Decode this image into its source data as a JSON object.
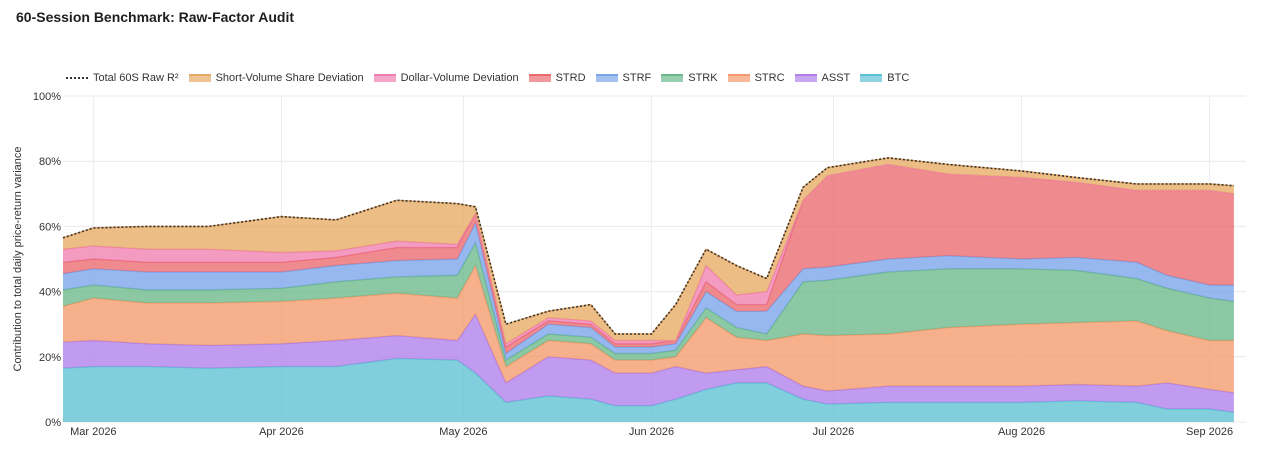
{
  "page": {
    "title": "60-Session Benchmark: Raw-Factor Audit"
  },
  "chart_data": {
    "type": "area",
    "stacked": true,
    "title": "60-Session Benchmark: Raw-Factor Audit",
    "ylabel": "Contribution to total daily price-return variance",
    "xlabel": "",
    "ylim": [
      0,
      100
    ],
    "xlim": [
      "2026-02-24",
      "2026-09-07"
    ],
    "grid": true,
    "legend_position": "top",
    "y_ticks": [
      {
        "value": 0,
        "label": "0%"
      },
      {
        "value": 20,
        "label": "20%"
      },
      {
        "value": 40,
        "label": "40%"
      },
      {
        "value": 60,
        "label": "60%"
      },
      {
        "value": 80,
        "label": "80%"
      },
      {
        "value": 100,
        "label": "100%"
      }
    ],
    "x_ticks": [
      {
        "date": "2026-03-01",
        "label": "Mar 2026"
      },
      {
        "date": "2026-04-01",
        "label": "Apr 2026"
      },
      {
        "date": "2026-05-01",
        "label": "May 2026"
      },
      {
        "date": "2026-06-01",
        "label": "Jun 2026"
      },
      {
        "date": "2026-07-01",
        "label": "Jul 2026"
      },
      {
        "date": "2026-08-01",
        "label": "Aug 2026"
      },
      {
        "date": "2026-09-01",
        "label": "Sep 2026"
      }
    ],
    "x": [
      "2026-02-24",
      "2026-03-01",
      "2026-03-10",
      "2026-03-20",
      "2026-04-01",
      "2026-04-10",
      "2026-04-20",
      "2026-04-30",
      "2026-05-03",
      "2026-05-08",
      "2026-05-15",
      "2026-05-22",
      "2026-05-26",
      "2026-06-01",
      "2026-06-05",
      "2026-06-10",
      "2026-06-15",
      "2026-06-20",
      "2026-06-26",
      "2026-06-30",
      "2026-07-10",
      "2026-07-20",
      "2026-08-01",
      "2026-08-10",
      "2026-08-20",
      "2026-08-25",
      "2026-09-01",
      "2026-09-05"
    ],
    "total": {
      "name": "Total 60S Raw R²",
      "color": "#333333",
      "values": [
        56.5,
        59.5,
        60,
        60,
        63,
        62,
        68,
        67,
        66,
        30,
        34,
        36,
        27,
        27,
        36,
        53,
        48,
        44,
        72,
        78,
        81,
        79,
        77,
        75,
        73,
        73,
        73,
        72.5
      ]
    },
    "series": [
      {
        "name": "BTC",
        "color": "#5ec0d4",
        "values": [
          16.5,
          17,
          17,
          16.5,
          17,
          17,
          19.5,
          19,
          15,
          6,
          8,
          7,
          5,
          5,
          7,
          10,
          12,
          12,
          7,
          5.5,
          6,
          6,
          6,
          6.5,
          6,
          4,
          4,
          3
        ]
      },
      {
        "name": "ASST",
        "color": "#b07fea",
        "values": [
          8,
          8,
          7,
          7,
          7,
          8,
          7,
          6,
          18,
          6,
          12,
          12,
          10,
          10,
          10,
          5,
          4,
          5,
          4,
          4,
          5,
          5,
          5,
          5,
          5,
          8,
          6,
          6
        ]
      },
      {
        "name": "STRC",
        "color": "#f49a6c",
        "values": [
          11,
          13,
          12.5,
          13,
          13,
          13,
          13,
          13,
          15,
          5,
          5,
          5,
          4,
          4,
          3,
          17,
          10,
          8,
          16,
          17,
          16,
          18,
          19,
          19,
          20,
          16,
          15,
          16
        ]
      },
      {
        "name": "STRK",
        "color": "#6ab989",
        "values": [
          5,
          4,
          4,
          4,
          4,
          5,
          5,
          7,
          7,
          2,
          2,
          2,
          2,
          2,
          2,
          3,
          3,
          2,
          16,
          17,
          19,
          18,
          17,
          16,
          13,
          13,
          13,
          12
        ]
      },
      {
        "name": "STRF",
        "color": "#7aa3ea",
        "values": [
          5,
          5,
          5.5,
          5.5,
          5,
          5,
          5,
          5,
          6,
          2,
          3,
          3,
          2,
          2,
          2,
          5,
          5,
          7,
          4,
          4,
          4,
          4,
          3,
          4,
          5,
          4,
          4,
          5
        ]
      },
      {
        "name": "STRD",
        "color": "#ea6a70",
        "values": [
          3.5,
          3,
          3,
          3,
          3,
          2.5,
          4,
          3.5,
          3,
          2,
          1,
          1,
          1,
          1,
          1,
          3,
          2,
          2,
          21,
          28,
          29,
          25,
          25,
          23,
          22,
          26,
          29,
          28
        ]
      },
      {
        "name": "Dollar-Volume Deviation",
        "color": "#ef7fb0",
        "values": [
          4,
          4,
          4,
          4,
          3,
          2,
          2,
          1,
          0,
          1,
          1,
          1,
          1,
          1,
          0,
          5,
          3,
          4,
          0,
          0,
          0,
          0,
          0,
          0,
          0,
          0,
          0,
          0
        ]
      },
      {
        "name": "Short-Volume Share Deviation",
        "color": "#e8aa64",
        "values": [
          3.5,
          5.5,
          7,
          7,
          11,
          9.5,
          12.5,
          12.5,
          2,
          6,
          2,
          5,
          2,
          2,
          11,
          5,
          9,
          4,
          4,
          2.5,
          2,
          3,
          2,
          1.5,
          2,
          2,
          2,
          2.5
        ]
      }
    ]
  }
}
